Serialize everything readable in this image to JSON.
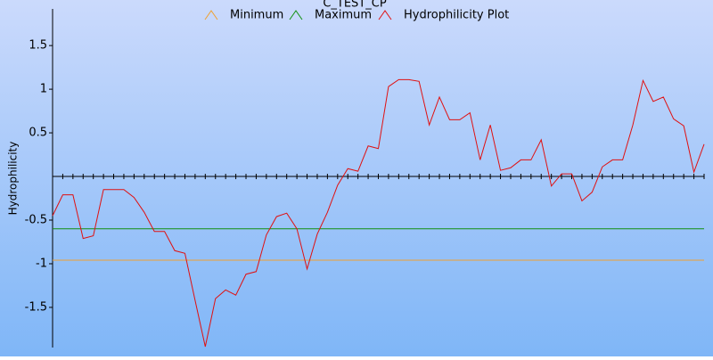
{
  "chart_data": {
    "type": "line",
    "title": "C_TEST_CP",
    "y_label": "Hydrophilicity",
    "x": [
      1,
      2,
      3,
      4,
      5,
      6,
      7,
      8,
      9,
      10,
      11,
      12,
      13,
      14,
      15,
      16,
      17,
      18,
      19,
      20,
      21,
      22,
      23,
      24,
      25,
      26,
      27,
      28,
      29,
      30,
      31,
      32,
      33,
      34,
      35,
      36,
      37,
      38,
      39,
      40,
      41,
      42,
      43,
      44,
      45,
      46,
      47,
      48,
      49,
      50,
      51,
      52,
      53,
      54,
      55,
      56,
      57,
      58,
      59,
      60,
      61,
      62,
      63,
      64,
      65
    ],
    "xlim": [
      1,
      65
    ],
    "ylim": [
      -1.96,
      1.92
    ],
    "yticks": [
      1.5,
      1,
      0.5,
      -0.5,
      -1,
      -1.5
    ],
    "series": [
      {
        "name": "Minimum",
        "color": "#f0a030",
        "value": -0.96
      },
      {
        "name": "Maximum",
        "color": "#109010",
        "value": -0.6
      },
      {
        "name": "Hydrophilicity Plot",
        "color": "#e01010",
        "values": [
          -0.45,
          -0.21,
          -0.21,
          -0.71,
          -0.68,
          -0.15,
          -0.15,
          -0.15,
          -0.24,
          -0.41,
          -0.63,
          -0.63,
          -0.85,
          -0.88,
          -1.42,
          -1.95,
          -1.4,
          -1.3,
          -1.36,
          -1.12,
          -1.09,
          -0.67,
          -0.46,
          -0.42,
          -0.6,
          -1.06,
          -0.66,
          -0.41,
          -0.1,
          0.09,
          0.06,
          0.35,
          0.32,
          1.03,
          1.11,
          1.11,
          1.09,
          0.59,
          0.91,
          0.65,
          0.65,
          0.73,
          0.19,
          0.59,
          0.07,
          0.1,
          0.19,
          0.19,
          0.42,
          -0.11,
          0.03,
          0.03,
          -0.28,
          -0.18,
          0.11,
          0.19,
          0.19,
          0.59,
          1.1,
          0.86,
          0.91,
          0.66,
          0.58,
          0.05,
          0.37
        ]
      }
    ]
  }
}
